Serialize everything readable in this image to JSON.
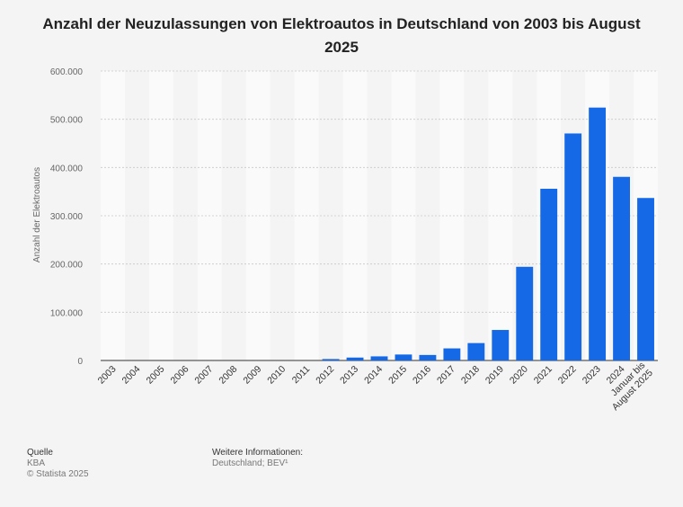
{
  "page": {
    "title": "Anzahl der Neuzulassungen von Elektroautos in Deutschland von 2003 bis August 2025"
  },
  "chart_data": {
    "type": "bar",
    "title": "Anzahl der Neuzulassungen von Elektroautos in Deutschland von 2003 bis August 2025",
    "xlabel": "",
    "ylabel": "Anzahl der Elektroautos",
    "ylim": [
      0,
      600000
    ],
    "yticks": [
      0,
      100000,
      200000,
      300000,
      400000,
      500000,
      600000
    ],
    "ytick_labels": [
      "0",
      "100.000",
      "200.000",
      "300.000",
      "400.000",
      "500.000",
      "600.000"
    ],
    "categories": [
      "2003",
      "2004",
      "2005",
      "2006",
      "2007",
      "2008",
      "2009",
      "2010",
      "2011",
      "2012",
      "2013",
      "2014",
      "2015",
      "2016",
      "2017",
      "2018",
      "2019",
      "2020",
      "2021",
      "2022",
      "2023",
      "2024",
      "Januar bis August 2025"
    ],
    "values": [
      0,
      0,
      0,
      0,
      0,
      0,
      0,
      0,
      0,
      2956,
      6051,
      8522,
      12363,
      11410,
      25056,
      36062,
      63281,
      194163,
      355961,
      470559,
      524219,
      380609,
      336830
    ],
    "grid": true,
    "colors": {
      "bar": "#1569e6",
      "background": "#f4f4f4",
      "band": "#fafafa",
      "gridline": "#c8c8c8"
    }
  },
  "footer": {
    "source_heading": "Quelle",
    "source_name": "KBA",
    "copyright": "© Statista 2025",
    "info_heading": "Weitere Informationen:",
    "info_text": "Deutschland; BEV¹"
  }
}
